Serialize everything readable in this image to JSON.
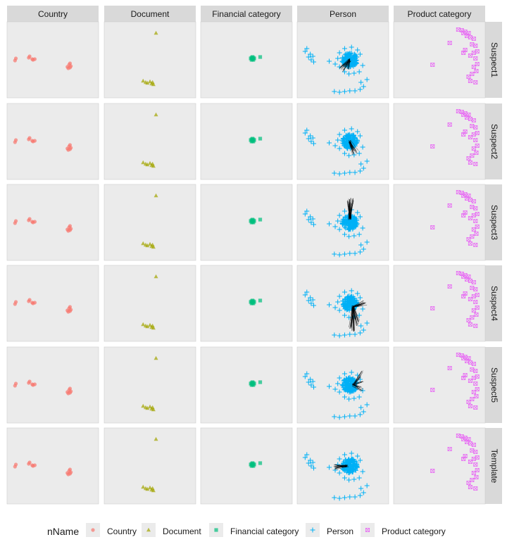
{
  "chart_data": {
    "type": "scatter",
    "facet_columns": [
      "Country",
      "Document",
      "Financial category",
      "Person",
      "Product category"
    ],
    "facet_rows": [
      "Suspect1",
      "Suspect2",
      "Suspect3",
      "Suspect4",
      "Suspect5",
      "Template"
    ],
    "legend": {
      "title": "nName",
      "position": "bottom",
      "entries": [
        "Country",
        "Document",
        "Financial category",
        "Person",
        "Product category"
      ]
    },
    "grid": false,
    "axes_shown": false,
    "panel_background": "#ebebeb",
    "colors": {
      "Country": "#f8766d",
      "Document": "#a3a500",
      "Financial category": "#00bf7d",
      "Person": "#00b0f6",
      "Product category": "#e76bf3",
      "edges": "#000000",
      "strip": "#d9d9d9"
    },
    "shapes": {
      "Country": "circle",
      "Document": "triangle",
      "Financial category": "square",
      "Person": "plus",
      "Product category": "boxed-x"
    },
    "xlim": [
      0,
      1
    ],
    "ylim": [
      0,
      1
    ],
    "series": [
      {
        "name": "Country",
        "points": [
          [
            0.06,
            0.49
          ],
          [
            0.07,
            0.52
          ],
          [
            0.22,
            0.53
          ],
          [
            0.23,
            0.55
          ],
          [
            0.26,
            0.51
          ],
          [
            0.27,
            0.5
          ],
          [
            0.29,
            0.51
          ],
          [
            0.67,
            0.4
          ],
          [
            0.68,
            0.38
          ],
          [
            0.7,
            0.39
          ],
          [
            0.69,
            0.43
          ],
          [
            0.7,
            0.45
          ],
          [
            0.71,
            0.41
          ]
        ]
      },
      {
        "name": "Document",
        "points": [
          [
            0.57,
            0.88
          ],
          [
            0.42,
            0.2
          ],
          [
            0.45,
            0.18
          ],
          [
            0.47,
            0.17
          ],
          [
            0.5,
            0.19
          ],
          [
            0.52,
            0.16
          ],
          [
            0.53,
            0.18
          ],
          [
            0.54,
            0.15
          ]
        ]
      },
      {
        "name": "Financial category",
        "points": [
          [
            0.55,
            0.52
          ],
          [
            0.56,
            0.53
          ],
          [
            0.57,
            0.51
          ],
          [
            0.58,
            0.5
          ],
          [
            0.59,
            0.52
          ],
          [
            0.57,
            0.54
          ],
          [
            0.56,
            0.5
          ],
          [
            0.58,
            0.53
          ],
          [
            0.66,
            0.54
          ]
        ]
      },
      {
        "name": "Person",
        "center": [
          0.58,
          0.5
        ],
        "radius": 0.09,
        "points": [
          [
            0.06,
            0.62
          ],
          [
            0.08,
            0.66
          ],
          [
            0.12,
            0.58
          ],
          [
            0.1,
            0.54
          ],
          [
            0.13,
            0.5
          ],
          [
            0.16,
            0.47
          ],
          [
            0.15,
            0.55
          ],
          [
            0.34,
            0.48
          ],
          [
            0.41,
            0.44
          ],
          [
            0.46,
            0.4
          ],
          [
            0.52,
            0.33
          ],
          [
            0.57,
            0.3
          ],
          [
            0.63,
            0.31
          ],
          [
            0.69,
            0.33
          ],
          [
            0.73,
            0.42
          ],
          [
            0.7,
            0.58
          ],
          [
            0.67,
            0.64
          ],
          [
            0.6,
            0.68
          ],
          [
            0.52,
            0.66
          ],
          [
            0.46,
            0.6
          ],
          [
            0.44,
            0.52
          ],
          [
            0.71,
            0.18
          ],
          [
            0.74,
            0.12
          ],
          [
            0.7,
            0.08
          ],
          [
            0.64,
            0.06
          ],
          [
            0.58,
            0.06
          ],
          [
            0.52,
            0.05
          ],
          [
            0.46,
            0.04
          ],
          [
            0.4,
            0.05
          ],
          [
            0.78,
            0.22
          ]
        ]
      },
      {
        "name": "Product category",
        "points": [
          [
            0.72,
            0.93
          ],
          [
            0.76,
            0.92
          ],
          [
            0.8,
            0.9
          ],
          [
            0.84,
            0.88
          ],
          [
            0.78,
            0.88
          ],
          [
            0.86,
            0.82
          ],
          [
            0.9,
            0.8
          ],
          [
            0.82,
            0.84
          ],
          [
            0.88,
            0.72
          ],
          [
            0.92,
            0.7
          ],
          [
            0.94,
            0.62
          ],
          [
            0.9,
            0.6
          ],
          [
            0.86,
            0.56
          ],
          [
            0.92,
            0.52
          ],
          [
            0.94,
            0.44
          ],
          [
            0.9,
            0.4
          ],
          [
            0.93,
            0.34
          ],
          [
            0.88,
            0.3
          ],
          [
            0.84,
            0.26
          ],
          [
            0.86,
            0.2
          ],
          [
            0.92,
            0.18
          ],
          [
            0.62,
            0.74
          ],
          [
            0.42,
            0.43
          ],
          [
            0.8,
            0.64
          ],
          [
            0.78,
            0.6
          ]
        ]
      }
    ],
    "edge_bundles": [
      {
        "row": "Suspect1",
        "column": "Person",
        "from": [
          0.58,
          0.5
        ],
        "to": [
          [
            0.48,
            0.4
          ],
          [
            0.46,
            0.38
          ],
          [
            0.5,
            0.35
          ],
          [
            0.56,
            0.37
          ],
          [
            0.54,
            0.4
          ]
        ]
      },
      {
        "row": "Suspect2",
        "column": "Person",
        "from": [
          0.58,
          0.5
        ],
        "to": [
          [
            0.6,
            0.4
          ],
          [
            0.63,
            0.36
          ],
          [
            0.66,
            0.35
          ],
          [
            0.62,
            0.33
          ]
        ]
      },
      {
        "row": "Suspect3",
        "column": "Person",
        "from": [
          0.58,
          0.55
        ],
        "to": [
          [
            0.55,
            0.8
          ],
          [
            0.58,
            0.83
          ],
          [
            0.62,
            0.82
          ],
          [
            0.6,
            0.77
          ],
          [
            0.57,
            0.76
          ]
        ]
      },
      {
        "row": "Suspect4",
        "column": "Person",
        "from": [
          0.62,
          0.45
        ],
        "to": [
          [
            0.74,
            0.52
          ],
          [
            0.76,
            0.5
          ],
          [
            0.72,
            0.48
          ],
          [
            0.6,
            0.16
          ],
          [
            0.62,
            0.12
          ],
          [
            0.66,
            0.18
          ],
          [
            0.63,
            0.1
          ],
          [
            0.58,
            0.14
          ],
          [
            0.68,
            0.24
          ],
          [
            0.64,
            0.28
          ]
        ]
      },
      {
        "row": "Suspect5",
        "column": "Person",
        "from": [
          0.62,
          0.5
        ],
        "to": [
          [
            0.72,
            0.7
          ],
          [
            0.7,
            0.62
          ],
          [
            0.74,
            0.55
          ],
          [
            0.7,
            0.46
          ],
          [
            0.73,
            0.42
          ]
        ]
      },
      {
        "row": "Template",
        "column": "Person",
        "from": [
          0.55,
          0.5
        ],
        "to": [
          [
            0.4,
            0.52
          ],
          [
            0.44,
            0.5
          ],
          [
            0.42,
            0.47
          ],
          [
            0.4,
            0.48
          ]
        ]
      }
    ]
  }
}
